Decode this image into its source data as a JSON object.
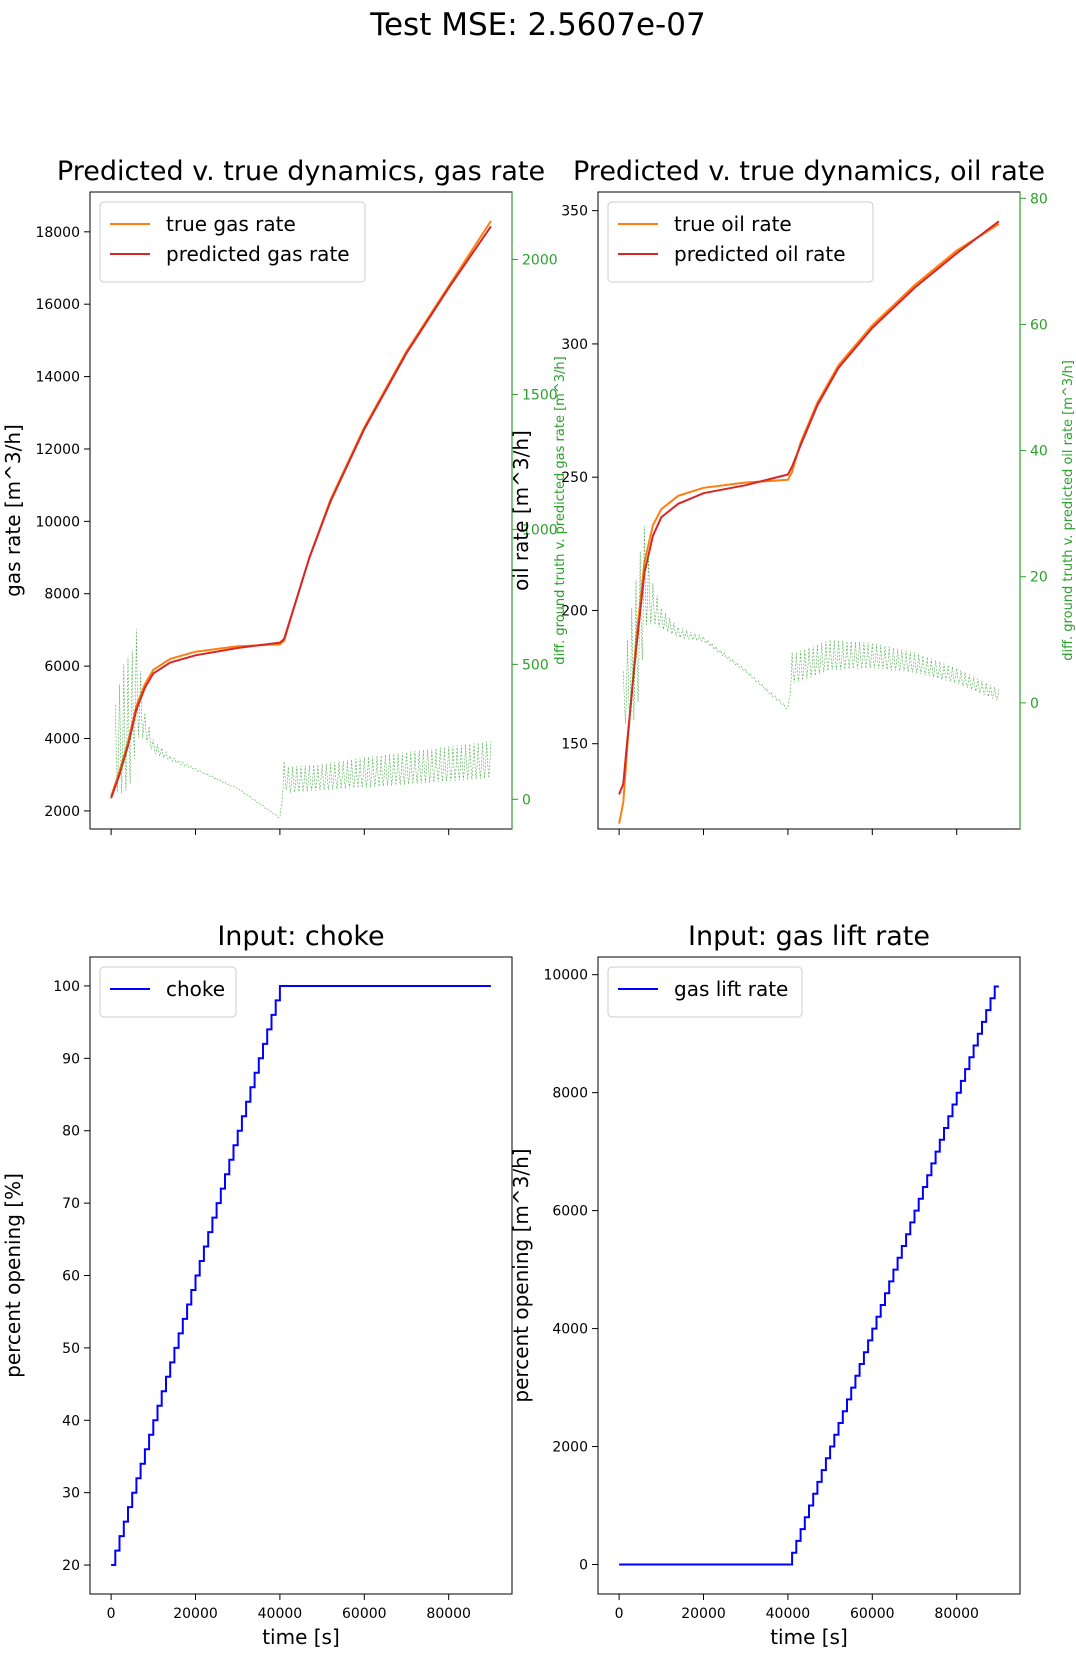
{
  "figure": {
    "suptitle": "Test MSE: 2.5607e-07"
  },
  "colors": {
    "true": "#ff7f0e",
    "pred": "#d62728",
    "diff": "#2ca02c",
    "input": "#0000ff",
    "axis": "#000000"
  },
  "chart_data": [
    {
      "id": "gas",
      "type": "line",
      "title": "Predicted v. true dynamics, gas rate",
      "xlabel": "",
      "ylabel": "gas rate [m^3/h]",
      "y2label": "diff. ground truth v. predicted gas rate [m^3/h]",
      "xlim": [
        -5000,
        95000
      ],
      "ylim": [
        1500,
        19100
      ],
      "y2lim": [
        -110,
        2250
      ],
      "xticks": [
        0,
        20000,
        40000,
        60000,
        80000
      ],
      "yticks": [
        2000,
        4000,
        6000,
        8000,
        10000,
        12000,
        14000,
        16000,
        18000
      ],
      "y2ticks": [
        0,
        500,
        1000,
        1500,
        2000
      ],
      "show_xticklabels": false,
      "legend": {
        "position": "top-left",
        "entries": [
          "true gas rate",
          "predicted gas rate"
        ]
      },
      "series": [
        {
          "name": "true gas rate",
          "role": "true",
          "x": [
            0,
            2000,
            4000,
            6000,
            8000,
            10000,
            14000,
            20000,
            30000,
            40000,
            41000,
            43000,
            47000,
            52000,
            60000,
            70000,
            80000,
            90000
          ],
          "y": [
            2400,
            3100,
            3900,
            4900,
            5500,
            5900,
            6200,
            6400,
            6550,
            6600,
            6700,
            7500,
            9000,
            10600,
            12600,
            14700,
            16500,
            18300
          ]
        },
        {
          "name": "predicted gas rate",
          "role": "pred",
          "x": [
            0,
            2000,
            4000,
            6000,
            8000,
            10000,
            14000,
            20000,
            30000,
            40000,
            41000,
            43000,
            47000,
            52000,
            60000,
            70000,
            80000,
            90000
          ],
          "y": [
            2350,
            3000,
            3800,
            4800,
            5400,
            5800,
            6100,
            6300,
            6500,
            6650,
            6750,
            7500,
            9000,
            10550,
            12550,
            14650,
            16450,
            18150
          ]
        },
        {
          "name": "diff",
          "role": "diff",
          "y2": true,
          "x": [
            1000,
            3000,
            5000,
            6000,
            8000,
            10000,
            14000,
            20000,
            30000,
            40000,
            41000,
            42000,
            50000,
            60000,
            70000,
            80000,
            90000
          ],
          "y": [
            150,
            200,
            250,
            380,
            260,
            190,
            150,
            110,
            40,
            -70,
            80,
            60,
            70,
            85,
            100,
            115,
            130
          ],
          "amp": [
            200,
            300,
            300,
            250,
            60,
            30,
            10,
            5,
            3,
            3,
            60,
            60,
            60,
            70,
            75,
            80,
            85
          ]
        }
      ]
    },
    {
      "id": "oil",
      "type": "line",
      "title": "Predicted v. true dynamics, oil rate",
      "xlabel": "",
      "ylabel": "oil rate [m^3/h]",
      "y2label": "diff. ground truth v. predicted oil rate [m^3/h]",
      "xlim": [
        -5000,
        95000
      ],
      "ylim": [
        118,
        357
      ],
      "y2lim": [
        -20,
        81
      ],
      "xticks": [
        0,
        20000,
        40000,
        60000,
        80000
      ],
      "yticks": [
        150,
        200,
        250,
        300,
        350
      ],
      "y2ticks": [
        0,
        20,
        40,
        60,
        80
      ],
      "show_xticklabels": false,
      "legend": {
        "position": "top-left",
        "entries": [
          "true oil rate",
          "predicted oil rate"
        ]
      },
      "series": [
        {
          "name": "true oil rate",
          "role": "true",
          "x": [
            0,
            1000,
            2000,
            4000,
            6000,
            8000,
            10000,
            14000,
            20000,
            30000,
            40000,
            41000,
            43000,
            47000,
            52000,
            60000,
            70000,
            80000,
            90000
          ],
          "y": [
            120,
            128,
            150,
            188,
            218,
            232,
            238,
            243,
            246,
            248,
            249,
            252,
            263,
            278,
            292,
            307,
            322,
            335,
            345
          ]
        },
        {
          "name": "predicted oil rate",
          "role": "pred",
          "x": [
            0,
            1000,
            2000,
            4000,
            6000,
            8000,
            10000,
            14000,
            20000,
            30000,
            40000,
            41000,
            43000,
            47000,
            52000,
            60000,
            70000,
            80000,
            90000
          ],
          "y": [
            131,
            135,
            152,
            185,
            214,
            228,
            235,
            240,
            244,
            247,
            251,
            254,
            262,
            277,
            291,
            306,
            321,
            334,
            346
          ]
        },
        {
          "name": "diff",
          "role": "diff",
          "y2": true,
          "x": [
            1000,
            3000,
            5000,
            6000,
            8000,
            10000,
            14000,
            20000,
            30000,
            40000,
            41000,
            42000,
            50000,
            60000,
            70000,
            80000,
            90000
          ],
          "y": [
            0,
            3,
            10,
            18,
            15,
            13,
            11,
            10,
            5,
            -1,
            5,
            5,
            7,
            7,
            6,
            4,
            1
          ],
          "amp": [
            5,
            12,
            14,
            10,
            4,
            2,
            1,
            0.5,
            0.3,
            0.3,
            3,
            3,
            3,
            2.5,
            2,
            1.5,
            1.2
          ]
        }
      ]
    },
    {
      "id": "choke",
      "type": "line",
      "title": "Input: choke",
      "xlabel": "time [s]",
      "ylabel": "percent opening [%]",
      "xlim": [
        -5000,
        95000
      ],
      "ylim": [
        16,
        104
      ],
      "xticks": [
        0,
        20000,
        40000,
        60000,
        80000
      ],
      "yticks": [
        20,
        30,
        40,
        50,
        60,
        70,
        80,
        90,
        100
      ],
      "show_xticklabels": true,
      "legend": {
        "position": "top-left",
        "entries": [
          "choke"
        ]
      },
      "series": [
        {
          "name": "choke",
          "role": "input",
          "step": true,
          "x": [
            0,
            1000,
            2000,
            3000,
            4000,
            5000,
            6000,
            7000,
            8000,
            9000,
            10000,
            11000,
            12000,
            13000,
            14000,
            15000,
            16000,
            17000,
            18000,
            19000,
            20000,
            21000,
            22000,
            23000,
            24000,
            25000,
            26000,
            27000,
            28000,
            29000,
            30000,
            31000,
            32000,
            33000,
            34000,
            35000,
            36000,
            37000,
            38000,
            39000,
            40000,
            90000
          ],
          "y": [
            20,
            22,
            24,
            26,
            28,
            30,
            32,
            34,
            36,
            38,
            40,
            42,
            44,
            46,
            48,
            50,
            52,
            54,
            56,
            58,
            60,
            62,
            64,
            66,
            68,
            70,
            72,
            74,
            76,
            78,
            80,
            82,
            84,
            86,
            88,
            90,
            92,
            94,
            96,
            98,
            100,
            100
          ]
        }
      ]
    },
    {
      "id": "gaslift",
      "type": "line",
      "title": "Input: gas lift rate",
      "xlabel": "time [s]",
      "ylabel": "percent opening [m^3/h]",
      "xlim": [
        -5000,
        95000
      ],
      "ylim": [
        -500,
        10300
      ],
      "xticks": [
        0,
        20000,
        40000,
        60000,
        80000
      ],
      "yticks": [
        0,
        2000,
        4000,
        6000,
        8000,
        10000
      ],
      "show_xticklabels": true,
      "legend": {
        "position": "top-left",
        "entries": [
          "gas lift rate"
        ]
      },
      "series": [
        {
          "name": "gas lift rate",
          "role": "input",
          "step": true,
          "x": [
            0,
            41000,
            42000,
            43000,
            44000,
            45000,
            46000,
            47000,
            48000,
            49000,
            50000,
            51000,
            52000,
            53000,
            54000,
            55000,
            56000,
            57000,
            58000,
            59000,
            60000,
            61000,
            62000,
            63000,
            64000,
            65000,
            66000,
            67000,
            68000,
            69000,
            70000,
            71000,
            72000,
            73000,
            74000,
            75000,
            76000,
            77000,
            78000,
            79000,
            80000,
            81000,
            82000,
            83000,
            84000,
            85000,
            86000,
            87000,
            88000,
            89000,
            90000
          ],
          "y": [
            0,
            200,
            400,
            600,
            800,
            1000,
            1200,
            1400,
            1600,
            1800,
            2000,
            2200,
            2400,
            2600,
            2800,
            3000,
            3200,
            3400,
            3600,
            3800,
            4000,
            4200,
            4400,
            4600,
            4800,
            5000,
            5200,
            5400,
            5600,
            5800,
            6000,
            6200,
            6400,
            6600,
            6800,
            7000,
            7200,
            7400,
            7600,
            7800,
            8000,
            8200,
            8400,
            8600,
            8800,
            9000,
            9200,
            9400,
            9600,
            9800,
            9800
          ]
        }
      ]
    }
  ]
}
